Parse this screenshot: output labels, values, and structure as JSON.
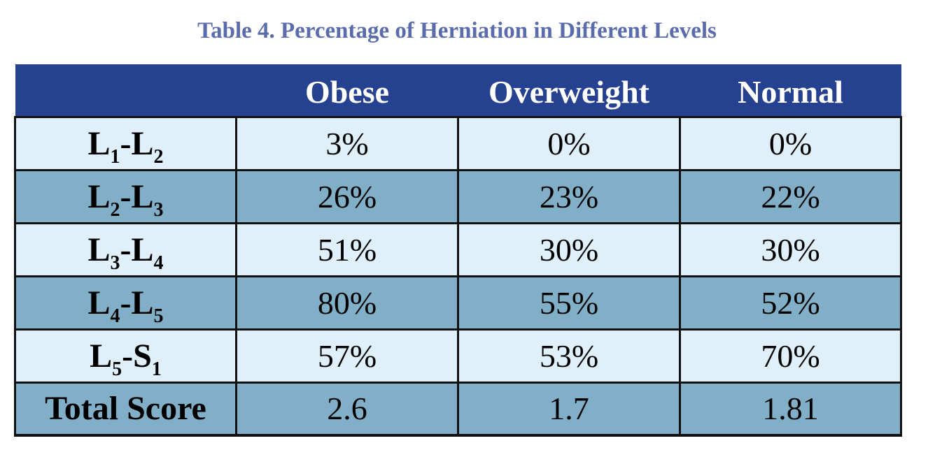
{
  "caption": "Table 4. Percentage of Herniation in Different Levels",
  "header": {
    "corner": "",
    "columns": [
      "Obese",
      "Overweight",
      "Normal"
    ]
  },
  "rows": [
    {
      "label": {
        "a": "L",
        "a_sub": "1",
        "sep": "-",
        "b": "L",
        "b_sub": "2"
      },
      "values": [
        "3%",
        "0%",
        "0%"
      ]
    },
    {
      "label": {
        "a": "L",
        "a_sub": "2",
        "sep": "-",
        "b": "L",
        "b_sub": "3"
      },
      "values": [
        "26%",
        "23%",
        "22%"
      ]
    },
    {
      "label": {
        "a": "L",
        "a_sub": "3",
        "sep": "-",
        "b": "L",
        "b_sub": "4"
      },
      "values": [
        "51%",
        "30%",
        "30%"
      ]
    },
    {
      "label": {
        "a": "L",
        "a_sub": "4",
        "sep": "-",
        "b": "L",
        "b_sub": "5"
      },
      "values": [
        "80%",
        "55%",
        "52%"
      ]
    },
    {
      "label": {
        "a": "L",
        "a_sub": "5",
        "sep": "-",
        "b": "S",
        "b_sub": "1"
      },
      "values": [
        "57%",
        "53%",
        "70%"
      ]
    }
  ],
  "total": {
    "label": "Total Score",
    "values": [
      "2.6",
      "1.7",
      "1.81"
    ]
  },
  "colors": {
    "caption": "#5b6cad",
    "header_bg": "#25418f",
    "row_light": "#dff0fa",
    "row_dark": "#81afc8",
    "border": "#111111"
  }
}
